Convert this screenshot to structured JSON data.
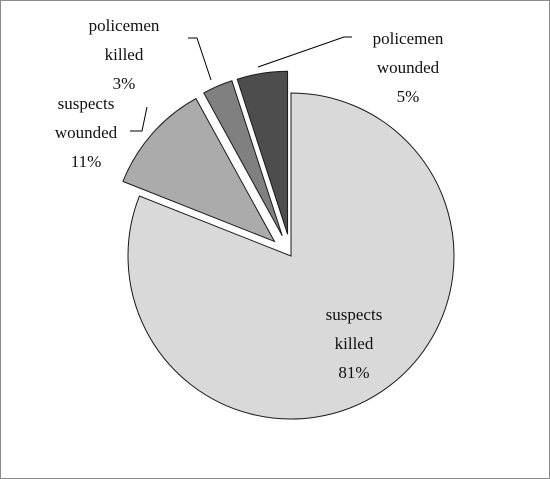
{
  "chart_data": {
    "type": "pie",
    "slices": [
      {
        "label_lines": [
          "suspects",
          "killed"
        ],
        "percent_label": "81%",
        "value": 81,
        "color": "#d9d9d9",
        "exploded": false
      },
      {
        "label_lines": [
          "suspects",
          "wounded"
        ],
        "percent_label": "11%",
        "value": 11,
        "color": "#ababab",
        "exploded": true
      },
      {
        "label_lines": [
          "policemen",
          "killed"
        ],
        "percent_label": "3%",
        "value": 3,
        "color": "#808080",
        "exploded": true
      },
      {
        "label_lines": [
          "policemen",
          "wounded"
        ],
        "percent_label": "5%",
        "value": 5,
        "color": "#4d4d4d",
        "exploded": true
      }
    ],
    "start_angle": "12 o'clock",
    "direction": "clockwise",
    "legend": "none"
  }
}
